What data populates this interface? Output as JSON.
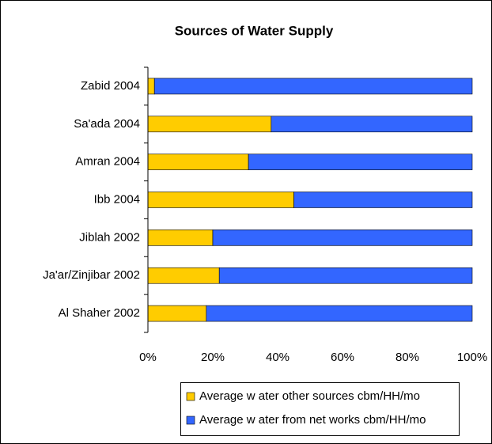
{
  "chart_data": {
    "type": "stacked_barh",
    "title": "Sources of Water Supply",
    "categories": [
      "Zabid 2004",
      "Sa'ada 2004",
      "Amran 2004",
      "Ibb 2004",
      "Jiblah 2002",
      "Ja'ar/Zinjibar 2002",
      "Al Shaher 2002"
    ],
    "series": [
      {
        "name": "Average w ater other sources cbm/HH/mo",
        "color": "#ffcc00",
        "values": [
          2,
          38,
          31,
          45,
          20,
          22,
          18
        ]
      },
      {
        "name": "Average w ater from net works cbm/HH/mo",
        "color": "#3366ff",
        "values": [
          98,
          62,
          69,
          55,
          80,
          78,
          82
        ]
      }
    ],
    "xlim": [
      0,
      100
    ],
    "xticks": [
      {
        "value": 0,
        "label": "0%"
      },
      {
        "value": 20,
        "label": "20%"
      },
      {
        "value": 40,
        "label": "40%"
      },
      {
        "value": 60,
        "label": "60%"
      },
      {
        "value": 80,
        "label": "80%"
      },
      {
        "value": 100,
        "label": "100%"
      }
    ],
    "legend": "bottom"
  }
}
